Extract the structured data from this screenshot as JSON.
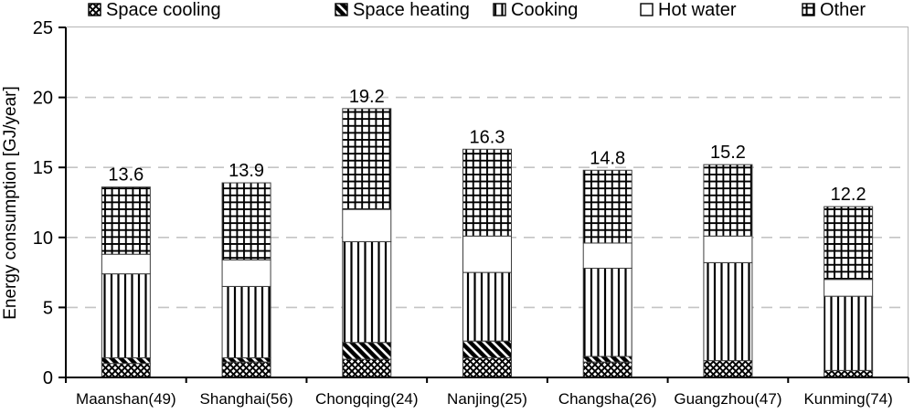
{
  "chart_data": {
    "type": "bar",
    "stacked": true,
    "title": "",
    "xlabel": "",
    "ylabel": "Energy consumption [GJ/year]",
    "ylim": [
      0,
      25
    ],
    "y_ticks": [
      0,
      5,
      10,
      15,
      20,
      25
    ],
    "grid": "horizontal dashed gridlines every 5 units",
    "legend_position": "top",
    "categories": [
      "Maanshan(49)",
      "Shanghai(56)",
      "Chongqing(24)",
      "Nanjing(25)",
      "Changsha(26)",
      "Guangzhou(47)",
      "Kunming(74)"
    ],
    "series": [
      {
        "name": "Space cooling",
        "pattern": "cooling",
        "values": [
          1.0,
          1.1,
          1.3,
          1.4,
          1.1,
          1.2,
          0.5
        ]
      },
      {
        "name": "Space heating",
        "pattern": "heating",
        "values": [
          0.4,
          0.3,
          1.2,
          1.2,
          0.4,
          0.0,
          0.0
        ]
      },
      {
        "name": "Cooking",
        "pattern": "cooking",
        "values": [
          6.0,
          5.1,
          7.2,
          4.9,
          6.3,
          7.0,
          5.3
        ]
      },
      {
        "name": "Hot water",
        "pattern": "hotwater",
        "values": [
          1.4,
          1.9,
          2.3,
          2.6,
          1.8,
          1.9,
          1.2
        ]
      },
      {
        "name": "Other",
        "pattern": "other",
        "values": [
          4.8,
          5.5,
          7.2,
          6.2,
          5.2,
          5.1,
          5.2
        ]
      }
    ],
    "totals": [
      13.6,
      13.9,
      19.2,
      16.3,
      14.8,
      15.2,
      12.2
    ]
  },
  "legend": {
    "items": [
      {
        "label": "Space cooling",
        "pattern": "cooling"
      },
      {
        "label": "Space heating",
        "pattern": "heating"
      },
      {
        "label": "Cooking",
        "pattern": "cooking"
      },
      {
        "label": "Hot water",
        "pattern": "hotwater"
      },
      {
        "label": "Other",
        "pattern": "other"
      }
    ]
  },
  "colors": {
    "background": "#ffffff",
    "axis": "#000000",
    "pattern_ink": "#000000",
    "bar_outline": "#3d3d3d",
    "gridline": "#c4c4c4",
    "plot_border": "#b5b5b5",
    "text": "#000000"
  }
}
